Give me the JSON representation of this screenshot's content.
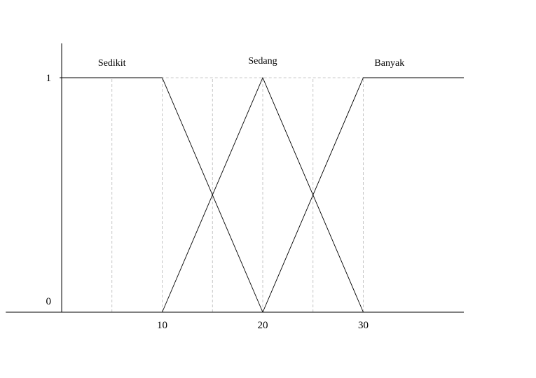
{
  "chart_data": {
    "type": "line",
    "title": "",
    "xlabel": "",
    "ylabel": "",
    "xlim": [
      -5,
      40
    ],
    "ylim": [
      0,
      1
    ],
    "grid": false,
    "x_ticks": [
      10,
      20,
      30
    ],
    "y_ticks": [
      0,
      1
    ],
    "guide_x": [
      5,
      10,
      15,
      20,
      25,
      30
    ],
    "series": [
      {
        "name": "Sedikit",
        "x": [
          -0.2,
          10,
          20
        ],
        "y": [
          1,
          1,
          0
        ]
      },
      {
        "name": "Sedang",
        "x": [
          10,
          20,
          30
        ],
        "y": [
          0,
          1,
          0
        ]
      },
      {
        "name": "Banyak",
        "x": [
          20,
          30,
          40
        ],
        "y": [
          0,
          1,
          1
        ]
      }
    ],
    "label_anchor_x": [
      5,
      20,
      32.6
    ]
  }
}
